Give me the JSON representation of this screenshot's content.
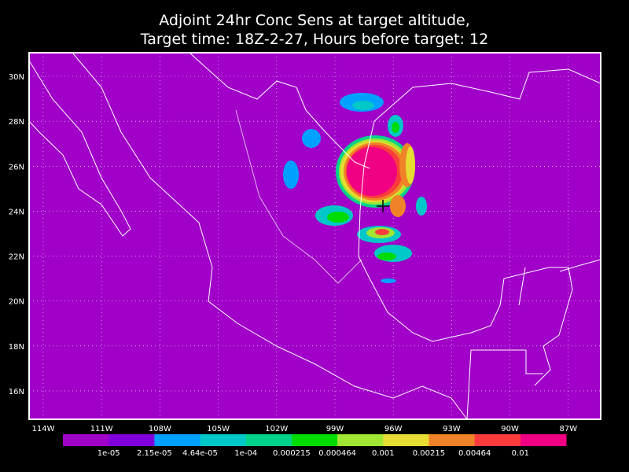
{
  "title": [
    "Adjoint 24hr Conc Sens at target altitude,",
    "Target time: 18Z-2-27, Hours before target: 12"
  ],
  "map": {
    "lon_ticks": [
      "114W",
      "111W",
      "108W",
      "105W",
      "102W",
      "99W",
      "96W",
      "93W",
      "90W",
      "87W"
    ],
    "lat_ticks": [
      "30N",
      "28N",
      "26N",
      "24N",
      "22N",
      "20N",
      "18N",
      "16N"
    ]
  },
  "colorbar": {
    "colors": [
      "#a000c8",
      "#8200dc",
      "#00a0ff",
      "#00c8c8",
      "#00d28c",
      "#00dc00",
      "#a0e632",
      "#e6dc32",
      "#f08228",
      "#fa3c3c",
      "#f00082"
    ],
    "labels": [
      "1e-05",
      "2.15e-05",
      "4.64e-05",
      "1e-04",
      "0.000215",
      "0.000464",
      "0.001",
      "0.00215",
      "0.00464",
      "0.01"
    ]
  }
}
